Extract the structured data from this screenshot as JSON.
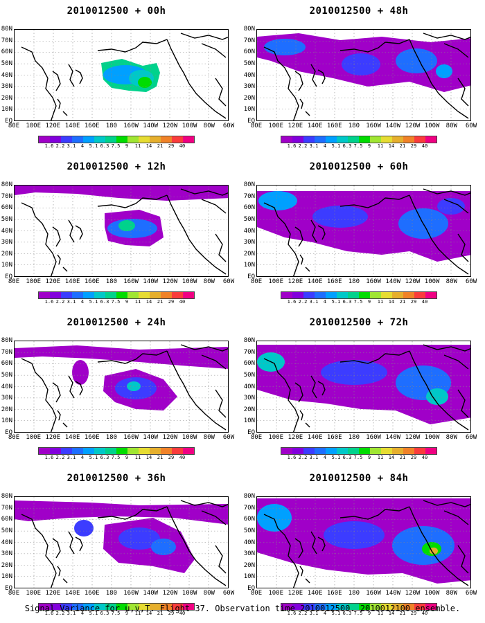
{
  "caption": "Signal Variance for u,v,T. Flight 37. Observation time 2010012500. 2010012100 ensemble.",
  "panels": [
    {
      "title": "2010012500 + 00h"
    },
    {
      "title": "2010012500 + 48h"
    },
    {
      "title": "2010012500 + 12h"
    },
    {
      "title": "2010012500 + 60h"
    },
    {
      "title": "2010012500 + 24h"
    },
    {
      "title": "2010012500 + 72h"
    },
    {
      "title": "2010012500 + 36h"
    },
    {
      "title": "2010012500 + 84h"
    }
  ],
  "axes": {
    "lat_labels": [
      "80N",
      "70N",
      "60N",
      "50N",
      "40N",
      "30N",
      "20N",
      "10N",
      "EQ"
    ],
    "lon_labels": [
      "80E",
      "100E",
      "120E",
      "140E",
      "160E",
      "180",
      "160W",
      "140W",
      "120W",
      "100W",
      "80W",
      "60W"
    ]
  },
  "colorbar": {
    "levels": [
      "1.6",
      "2.2",
      "3.1",
      "4",
      "5.1",
      "6.3",
      "7.5",
      "9",
      "11",
      "14",
      "21",
      "29",
      "40"
    ],
    "colors": [
      "#a000c8",
      "#8200dc",
      "#3c3cff",
      "#1e6eff",
      "#00a0ff",
      "#00c8c8",
      "#00d28c",
      "#00dc00",
      "#a0e632",
      "#e6dc32",
      "#e6af2d",
      "#f08228",
      "#fa3c3c",
      "#f00082"
    ]
  }
}
